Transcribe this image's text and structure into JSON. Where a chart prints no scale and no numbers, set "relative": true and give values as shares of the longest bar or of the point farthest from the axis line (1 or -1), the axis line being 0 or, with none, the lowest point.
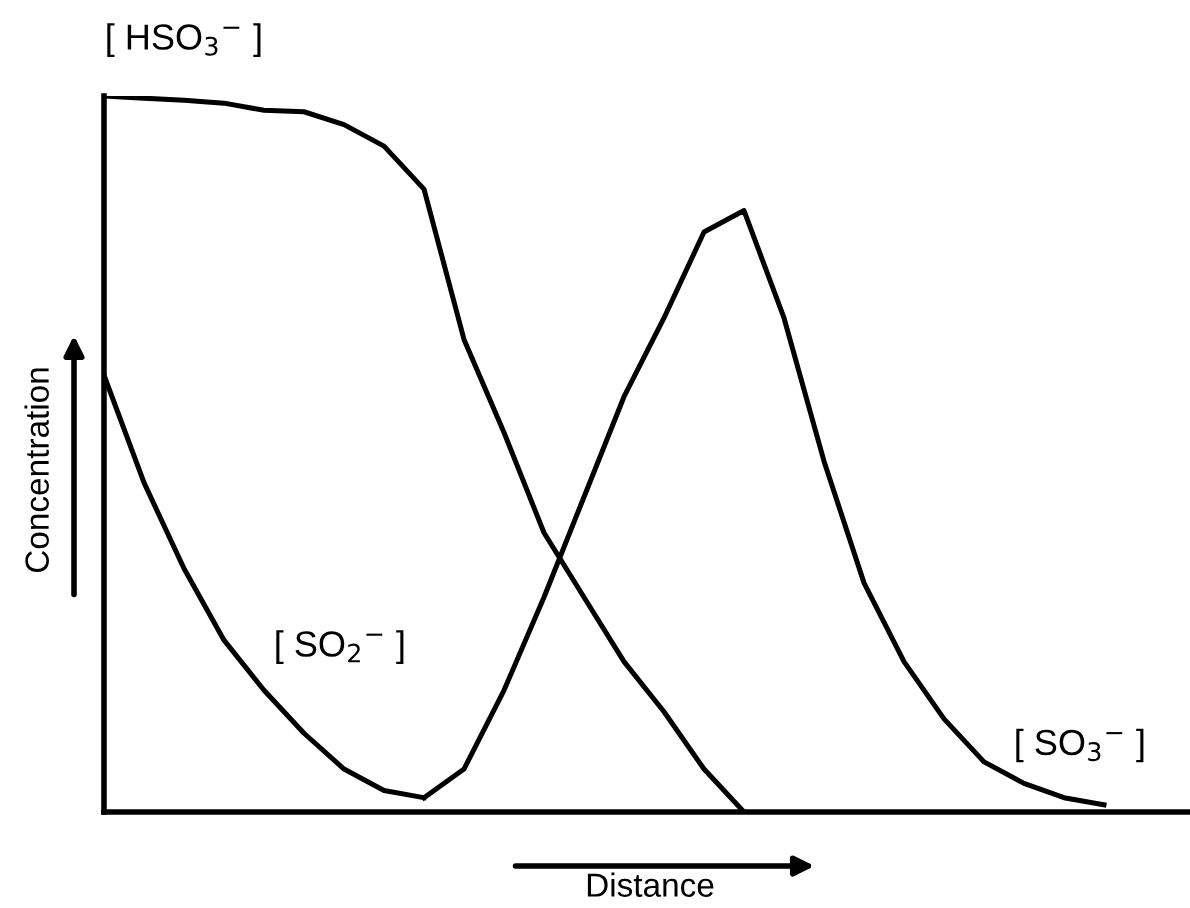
{
  "chart_data": {
    "type": "line",
    "relative": true,
    "xlabel": "Distance",
    "ylabel": "Concentration",
    "legend": false,
    "marker": "none",
    "line_style": "solid",
    "categories": [
      null,
      null,
      null,
      null,
      null,
      null,
      null,
      null,
      null,
      null,
      null,
      null,
      null,
      null,
      null,
      null,
      null,
      null,
      null,
      null,
      null,
      null,
      null,
      null,
      null,
      null,
      null
    ],
    "series": [
      {
        "name": "[ HSO$_{3}$$^{−}$ ]",
        "color": "#000000",
        "values": [
          1.0,
          0.997,
          0.994,
          0.99,
          0.98,
          0.978,
          0.96,
          0.93,
          0.87,
          0.66,
          0.53,
          0.39,
          0.3,
          0.21,
          0.14,
          0.06,
          0,
          null,
          null,
          null,
          null,
          null,
          null,
          null,
          null,
          null,
          null
        ]
      },
      {
        "name": "[ SO$_{2}$$^{−}$ ]",
        "color": "#000000",
        "values": [
          0.61,
          0.46,
          0.34,
          0.24,
          0.17,
          0.11,
          0.06,
          0.03,
          0.02,
          null,
          null,
          null,
          null,
          null,
          null,
          null,
          null,
          null,
          null,
          null,
          null,
          null,
          null,
          null,
          null,
          null,
          null
        ]
      },
      {
        "name": "[ SO$_{3}$$^{−}$ ]",
        "color": "#000000",
        "values": [
          null,
          null,
          null,
          null,
          null,
          null,
          null,
          null,
          0.02,
          0.06,
          0.17,
          0.3,
          0.44,
          0.58,
          0.69,
          0.81,
          0.84,
          0.69,
          0.49,
          0.32,
          0.21,
          0.13,
          0.07,
          0.04,
          0.02,
          0.01,
          null
        ]
      }
    ]
  }
}
